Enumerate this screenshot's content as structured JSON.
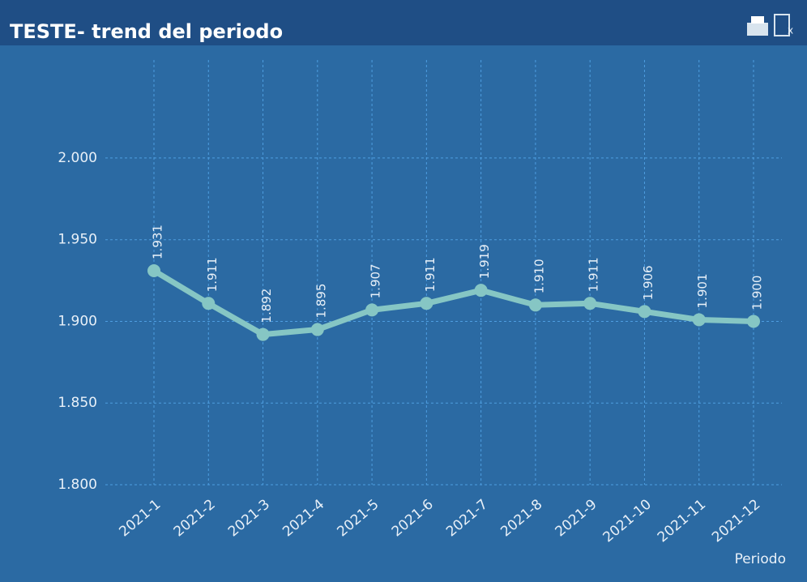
{
  "chart_data": {
    "type": "line",
    "title": "TESTE- trend del periodo",
    "x_label": "Periodo",
    "categories": [
      "2021-1",
      "2021-2",
      "2021-3",
      "2021-4",
      "2021-5",
      "2021-6",
      "2021-7",
      "2021-8",
      "2021-9",
      "2021-10",
      "2021-11",
      "2021-12"
    ],
    "series": [
      {
        "name": "TESTE",
        "color": "#86c6c4",
        "values": [
          1.931,
          1.911,
          1.892,
          1.895,
          1.907,
          1.911,
          1.919,
          1.91,
          1.911,
          1.906,
          1.901,
          1.9
        ],
        "value_labels": [
          "1.931",
          "1.911",
          "1.892",
          "1.895",
          "1.907",
          "1.911",
          "1.919",
          "1.910",
          "1.911",
          "1.906",
          "1.901",
          "1.900"
        ]
      }
    ],
    "ylim": [
      1.8,
      2.06
    ],
    "yticks": [
      {
        "value": 1.8,
        "label": "1.800"
      },
      {
        "value": 1.85,
        "label": "1.850"
      },
      {
        "value": 1.9,
        "label": "1.900"
      },
      {
        "value": 1.95,
        "label": "1.950"
      },
      {
        "value": 2.0,
        "label": "2.000"
      }
    ],
    "grid": true
  }
}
